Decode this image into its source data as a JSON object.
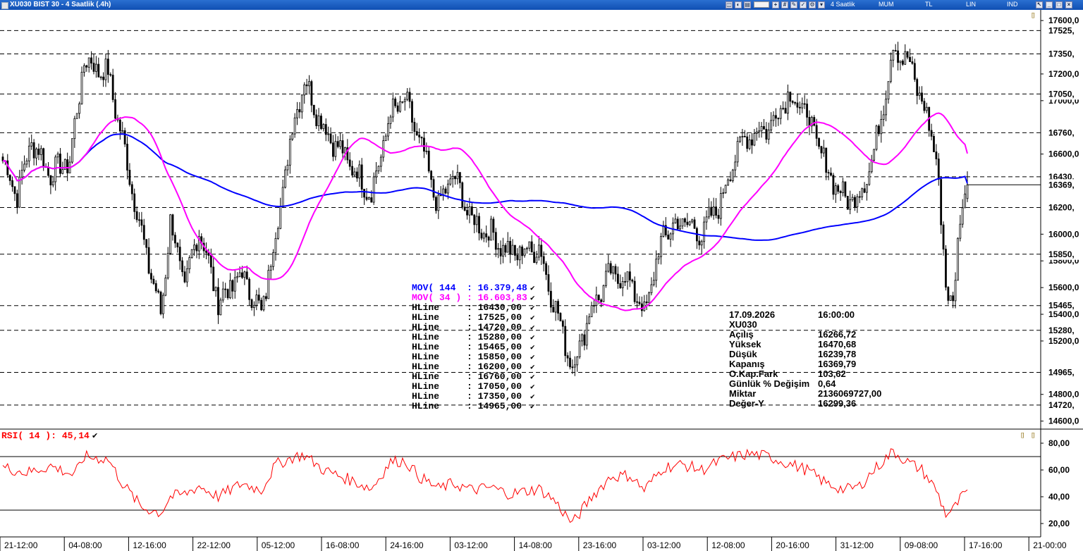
{
  "window": {
    "title": "XU030 BIST 30 - 4 Saatlik (.4h)",
    "toolbar": [
      "4 Saatlik",
      "MUM",
      "TL",
      "LIN",
      "IND"
    ],
    "marker": "[]"
  },
  "colors": {
    "mov144": "#0000ff",
    "mov34": "#ff00ff",
    "rsi": "#ff0000",
    "candle_up": "#ffffff",
    "candle_down": "#000000",
    "hline": "#000000"
  },
  "price_axis": {
    "ticks": [
      "17600,0",
      "17200,0",
      "17000,0",
      "16600,0",
      "16000,0",
      "15800,0",
      "15600,0",
      "15400,0",
      "15200,0",
      "14800,0",
      "14600,0"
    ],
    "tick_values": [
      17600,
      17200,
      17000,
      16600,
      16000,
      15800,
      15600,
      15400,
      15200,
      14800,
      14600
    ],
    "range": [
      14540,
      17680
    ]
  },
  "hline_labels": [
    {
      "label": "17525,",
      "value": 17525
    },
    {
      "label": "17350,",
      "value": 17350
    },
    {
      "label": "17050,",
      "value": 17050
    },
    {
      "label": "16760,",
      "value": 16760
    },
    {
      "label": "16430,",
      "value": 16430
    },
    {
      "label": "16369,",
      "value": 16369.79
    },
    {
      "label": "16200,",
      "value": 16200
    },
    {
      "label": "15850,",
      "value": 15850
    },
    {
      "label": "15465,",
      "value": 15465
    },
    {
      "label": "15280,",
      "value": 15280
    },
    {
      "label": "14965,",
      "value": 14965
    },
    {
      "label": "14720,",
      "value": 14720
    }
  ],
  "x_axis": {
    "labels": [
      "21-12:00",
      "04-08:00",
      "12-16:00",
      "22-12:00",
      "05-12:00",
      "16-08:00",
      "24-16:00",
      "03-12:00",
      "14-08:00",
      "23-16:00",
      "03-12:00",
      "12-08:00",
      "20-16:00",
      "31-12:00",
      "09-08:00",
      "17-16:00",
      "21-00:00"
    ]
  },
  "legend": {
    "mov144": {
      "name": "MOV( 144 ",
      "value": ": 16.379,48"
    },
    "mov34": {
      "name": "MOV( 34 )",
      "value": ": 16.603,83"
    },
    "hlines": [
      {
        "name": "HLine",
        "value": ": 16430,00"
      },
      {
        "name": "HLine",
        "value": ": 17525,00"
      },
      {
        "name": "HLine",
        "value": ": 14720,00"
      },
      {
        "name": "HLine",
        "value": ": 15280,00"
      },
      {
        "name": "HLine",
        "value": ": 15465,00"
      },
      {
        "name": "HLine",
        "value": ": 15850,00"
      },
      {
        "name": "HLine",
        "value": ": 16200,00"
      },
      {
        "name": "HLine",
        "value": ": 16760,00"
      },
      {
        "name": "HLine",
        "value": ": 17050,00"
      },
      {
        "name": "HLine",
        "value": ": 17350,00"
      },
      {
        "name": "HLine",
        "value": ": 14965,00"
      }
    ],
    "check": "✔"
  },
  "info_panel": {
    "date": "17.09.2026",
    "time": "16:00:00",
    "symbol": "XU030",
    "rows": [
      {
        "label": "Açılış",
        "value": "16266,72"
      },
      {
        "label": "Yüksek",
        "value": "16470,68"
      },
      {
        "label": "Düşük",
        "value": "16239,78"
      },
      {
        "label": "Kapanış",
        "value": "16369,79"
      },
      {
        "label": "O.Kap.Fark",
        "value": "103,62"
      },
      {
        "label": "Günlük % Değişim",
        "value": "0,64"
      },
      {
        "label": "Miktar",
        "value": "2136069727,00"
      },
      {
        "label": "Değer-Y",
        "value": "16299,36"
      }
    ]
  },
  "rsi_panel": {
    "label": "RSI( 14 ): 45,14",
    "ticks": [
      "80,00",
      "60,00",
      "40,00",
      "20,00"
    ],
    "tick_values": [
      80,
      60,
      40,
      20
    ],
    "levels": [
      70,
      30
    ],
    "range": [
      10,
      90
    ]
  },
  "chart_data": {
    "type": "candlestick",
    "symbol": "XU030",
    "horizontal_lines": [
      16430,
      17525,
      14720,
      15280,
      15465,
      15850,
      16200,
      16760,
      17050,
      17350,
      14965
    ],
    "moving_averages": [
      {
        "name": "MOV( 144 ",
        "period": 144,
        "last": 16379.48
      },
      {
        "name": "MOV( 34 )",
        "period": 34,
        "last": 16603.83
      }
    ],
    "last_bar": {
      "open": 16266.72,
      "high": 16470.68,
      "low": 16239.78,
      "close": 16369.79
    },
    "close_anchors": [
      [
        0,
        16550
      ],
      [
        6,
        16300
      ],
      [
        12,
        16700
      ],
      [
        20,
        16450
      ],
      [
        28,
        16550
      ],
      [
        34,
        17300
      ],
      [
        44,
        17200
      ],
      [
        50,
        16700
      ],
      [
        58,
        16000
      ],
      [
        66,
        15400
      ],
      [
        70,
        16100
      ],
      [
        76,
        15600
      ],
      [
        82,
        16050
      ],
      [
        90,
        15500
      ],
      [
        100,
        15700
      ],
      [
        108,
        15400
      ],
      [
        114,
        16000
      ],
      [
        122,
        16900
      ],
      [
        126,
        17150
      ],
      [
        134,
        16800
      ],
      [
        146,
        16500
      ],
      [
        154,
        16300
      ],
      [
        162,
        16900
      ],
      [
        168,
        17000
      ],
      [
        174,
        16700
      ],
      [
        182,
        16200
      ],
      [
        188,
        16450
      ],
      [
        196,
        16100
      ],
      [
        204,
        16000
      ],
      [
        212,
        15850
      ],
      [
        224,
        15900
      ],
      [
        230,
        15500
      ],
      [
        238,
        15000
      ],
      [
        246,
        15450
      ],
      [
        254,
        15700
      ],
      [
        262,
        15650
      ],
      [
        268,
        15400
      ],
      [
        276,
        16000
      ],
      [
        284,
        16100
      ],
      [
        292,
        16000
      ],
      [
        300,
        16250
      ],
      [
        306,
        16600
      ],
      [
        312,
        16750
      ],
      [
        320,
        16800
      ],
      [
        328,
        17050
      ],
      [
        336,
        16900
      ],
      [
        344,
        16500
      ],
      [
        352,
        16250
      ],
      [
        358,
        16300
      ],
      [
        364,
        16600
      ],
      [
        372,
        17400
      ],
      [
        378,
        17300
      ],
      [
        384,
        17000
      ],
      [
        390,
        16600
      ],
      [
        394,
        15600
      ],
      [
        397,
        15500
      ],
      [
        400,
        16100
      ],
      [
        403,
        16369.79
      ]
    ],
    "rsi": {
      "period": 14,
      "last": 45.14,
      "levels": [
        70,
        30
      ],
      "anchors": [
        [
          0,
          62
        ],
        [
          10,
          58
        ],
        [
          20,
          63
        ],
        [
          30,
          56
        ],
        [
          34,
          70
        ],
        [
          44,
          68
        ],
        [
          50,
          50
        ],
        [
          58,
          32
        ],
        [
          66,
          28
        ],
        [
          70,
          40
        ],
        [
          76,
          42
        ],
        [
          82,
          48
        ],
        [
          90,
          40
        ],
        [
          100,
          50
        ],
        [
          108,
          45
        ],
        [
          114,
          64
        ],
        [
          122,
          70
        ],
        [
          126,
          71
        ],
        [
          134,
          60
        ],
        [
          146,
          52
        ],
        [
          154,
          46
        ],
        [
          162,
          66
        ],
        [
          168,
          67
        ],
        [
          174,
          55
        ],
        [
          182,
          46
        ],
        [
          188,
          50
        ],
        [
          196,
          45
        ],
        [
          204,
          47
        ],
        [
          212,
          42
        ],
        [
          224,
          46
        ],
        [
          230,
          38
        ],
        [
          238,
          20
        ],
        [
          246,
          40
        ],
        [
          254,
          55
        ],
        [
          262,
          56
        ],
        [
          268,
          45
        ],
        [
          276,
          62
        ],
        [
          284,
          64
        ],
        [
          292,
          60
        ],
        [
          300,
          67
        ],
        [
          306,
          70
        ],
        [
          312,
          72
        ],
        [
          320,
          70
        ],
        [
          328,
          65
        ],
        [
          336,
          60
        ],
        [
          344,
          50
        ],
        [
          352,
          45
        ],
        [
          358,
          48
        ],
        [
          364,
          60
        ],
        [
          372,
          74
        ],
        [
          378,
          66
        ],
        [
          384,
          60
        ],
        [
          390,
          45
        ],
        [
          394,
          27
        ],
        [
          397,
          30
        ],
        [
          400,
          38
        ],
        [
          403,
          45.14
        ]
      ]
    }
  }
}
